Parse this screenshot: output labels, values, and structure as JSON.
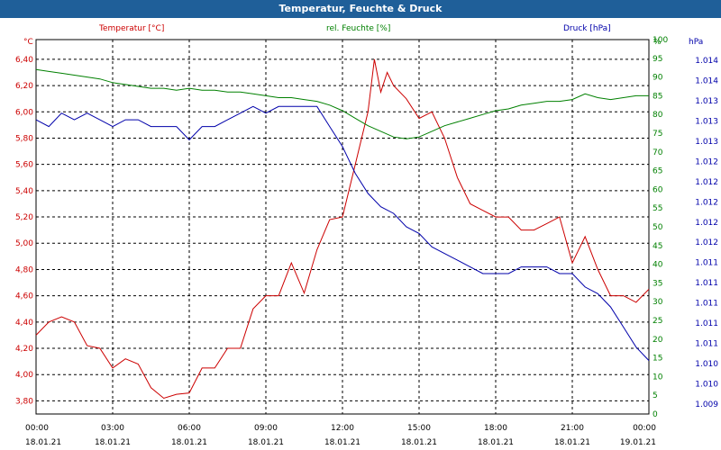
{
  "window": {
    "title": "Temperatur, Feuchte & Druck"
  },
  "colors": {
    "temperature": "#cc0000",
    "humidity": "#008000",
    "pressure": "#0000aa",
    "titlebar": "#1f5f99"
  },
  "chart_data": {
    "type": "line",
    "title": "Temperatur, Feuchte & Druck",
    "grid": true,
    "x_ticks": [
      {
        "time": "00:00",
        "date": "18.01.21"
      },
      {
        "time": "03:00",
        "date": "18.01.21"
      },
      {
        "time": "06:00",
        "date": "18.01.21"
      },
      {
        "time": "09:00",
        "date": "18.01.21"
      },
      {
        "time": "12:00",
        "date": "18.01.21"
      },
      {
        "time": "15:00",
        "date": "18.01.21"
      },
      {
        "time": "18:00",
        "date": "18.01.21"
      },
      {
        "time": "21:00",
        "date": "18.01.21"
      },
      {
        "time": "00:00",
        "date": "19.01.21"
      }
    ],
    "xlim": [
      0,
      24
    ],
    "axes": {
      "temperature": {
        "unit": "°C",
        "label": "Temperatur [°C]",
        "ylim": [
          3.7,
          6.55
        ],
        "ticks": [
          "3,80",
          "4,00",
          "4,20",
          "4,40",
          "4,60",
          "4,80",
          "5,00",
          "5,20",
          "5,40",
          "5,60",
          "5,80",
          "6,00",
          "6,20",
          "6,40"
        ]
      },
      "humidity": {
        "unit": "%",
        "label": "rel. Feuchte [%]",
        "ylim": [
          0,
          100
        ],
        "ticks": [
          "0",
          "5",
          "10",
          "15",
          "20",
          "25",
          "30",
          "35",
          "40",
          "45",
          "50",
          "55",
          "60",
          "65",
          "70",
          "75",
          "80",
          "85",
          "90",
          "95",
          "100"
        ]
      },
      "pressure": {
        "unit": "hPa",
        "label": "Druck [hPa]",
        "ylim": [
          1.0088,
          1.0144
        ],
        "ticks": [
          "1.009",
          "1.010",
          "1.010",
          "1.011",
          "1.011",
          "1.011",
          "1.011",
          "1.011",
          "1.012",
          "1.012",
          "1.012",
          "1.012",
          "1.012",
          "1.013",
          "1.013",
          "1.013",
          "1.014",
          "1.014"
        ]
      }
    },
    "series": [
      {
        "name": "Temperatur [°C]",
        "axis": "temperature",
        "color": "#cc0000",
        "x": [
          0,
          0.5,
          1,
          1.5,
          2,
          2.5,
          3,
          3.5,
          4,
          4.5,
          5,
          5.5,
          6,
          6.5,
          7,
          7.5,
          8,
          8.5,
          9,
          9.5,
          10,
          10.5,
          11,
          11.5,
          12,
          12.5,
          13,
          13.25,
          13.5,
          13.75,
          14,
          14.5,
          15,
          15.5,
          16,
          16.5,
          17,
          17.5,
          18,
          18.5,
          19,
          19.5,
          20,
          20.5,
          21,
          21.5,
          22,
          22.5,
          23,
          23.5,
          24
        ],
        "y": [
          4.3,
          4.4,
          4.44,
          4.4,
          4.22,
          4.2,
          4.05,
          4.12,
          4.08,
          3.9,
          3.82,
          3.85,
          3.86,
          4.05,
          4.05,
          4.2,
          4.2,
          4.5,
          4.6,
          4.6,
          4.85,
          4.62,
          4.95,
          5.18,
          5.2,
          5.6,
          6.0,
          6.4,
          6.15,
          6.3,
          6.2,
          6.1,
          5.95,
          6.0,
          5.8,
          5.5,
          5.3,
          5.25,
          5.2,
          5.2,
          5.1,
          5.1,
          5.15,
          5.2,
          4.85,
          5.05,
          4.8,
          4.6,
          4.6,
          4.55,
          4.65
        ]
      },
      {
        "name": "rel. Feuchte [%]",
        "axis": "humidity",
        "color": "#008000",
        "x": [
          0,
          0.5,
          1,
          1.5,
          2,
          2.5,
          3,
          3.5,
          4,
          4.5,
          5,
          5.5,
          6,
          6.5,
          7,
          7.5,
          8,
          8.5,
          9,
          9.5,
          10,
          10.5,
          11,
          11.5,
          12,
          12.5,
          13,
          13.5,
          14,
          14.5,
          15,
          15.5,
          16,
          16.5,
          17,
          17.5,
          18,
          18.5,
          19,
          19.5,
          20,
          20.5,
          21,
          21.5,
          22,
          22.5,
          23,
          23.5,
          24
        ],
        "y": [
          92,
          91.5,
          91,
          90.5,
          90,
          89.5,
          88.5,
          88,
          87.5,
          87,
          87,
          86.5,
          87,
          86.5,
          86.5,
          86,
          86,
          85.5,
          85,
          84.5,
          84.5,
          84,
          83.5,
          82.5,
          81,
          79,
          77,
          75.5,
          74,
          73.5,
          74,
          75.5,
          77,
          78,
          79,
          80,
          81,
          81.5,
          82.5,
          83,
          83.5,
          83.5,
          84,
          85.5,
          84.5,
          84,
          84.5,
          85,
          85
        ]
      },
      {
        "name": "Druck [hPa]",
        "axis": "pressure",
        "color": "#0000aa",
        "x": [
          0,
          0.5,
          1,
          1.5,
          2,
          2.5,
          3,
          3.5,
          4,
          4.5,
          5,
          5.5,
          6,
          6.5,
          7,
          7.5,
          8,
          8.5,
          9,
          9.5,
          10,
          10.5,
          11,
          11.5,
          12,
          12.5,
          13,
          13.5,
          14,
          14.5,
          15,
          15.5,
          16,
          16.5,
          17,
          17.5,
          18,
          18.5,
          19,
          19.5,
          20,
          20.5,
          21,
          21.5,
          22,
          22.5,
          23,
          23.5,
          24
        ],
        "y": [
          1.0132,
          1.0131,
          1.0133,
          1.0132,
          1.0133,
          1.0132,
          1.0131,
          1.0132,
          1.0132,
          1.0131,
          1.0131,
          1.0131,
          1.0129,
          1.0131,
          1.0131,
          1.0132,
          1.0133,
          1.0134,
          1.0133,
          1.0134,
          1.0134,
          1.0134,
          1.0134,
          1.0131,
          1.0128,
          1.0124,
          1.0121,
          1.0119,
          1.0118,
          1.0116,
          1.0115,
          1.0113,
          1.0112,
          1.0111,
          1.011,
          1.0109,
          1.0109,
          1.0109,
          1.011,
          1.011,
          1.011,
          1.0109,
          1.0109,
          1.0107,
          1.0106,
          1.0104,
          1.0101,
          1.0098,
          1.0096
        ]
      }
    ]
  }
}
